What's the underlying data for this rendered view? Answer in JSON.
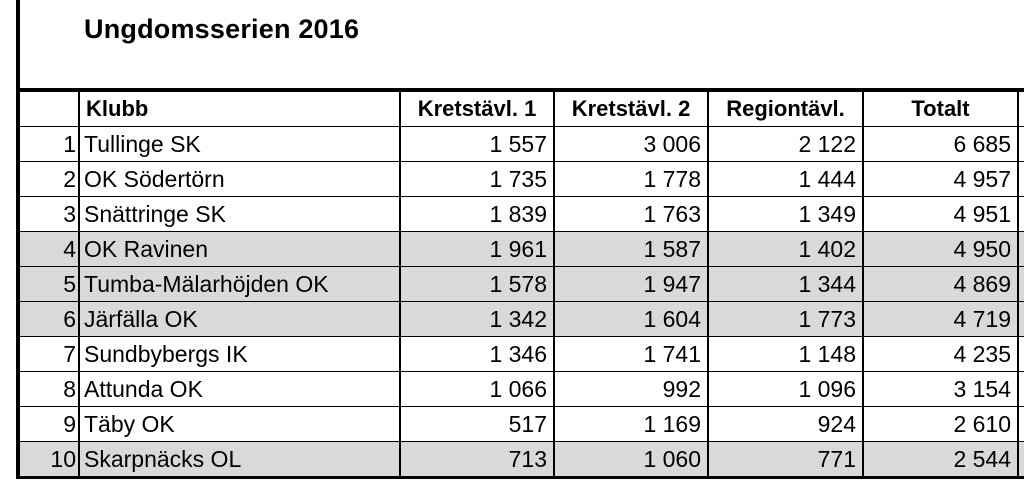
{
  "title": "Ungdomsserien 2016",
  "table": {
    "headers": {
      "rank": "",
      "club": "Klubb",
      "k1": "Kretstävl. 1",
      "k2": "Kretstävl. 2",
      "reg": "Regiontävl.",
      "total": "Totalt"
    },
    "rows": [
      {
        "rank": "1",
        "club": "Tullinge SK",
        "k1": "1 557",
        "k2": "3 006",
        "reg": "2 122",
        "total": "6 685",
        "shaded": false
      },
      {
        "rank": "2",
        "club": "OK Södertörn",
        "k1": "1 735",
        "k2": "1 778",
        "reg": "1 444",
        "total": "4 957",
        "shaded": false
      },
      {
        "rank": "3",
        "club": "Snättringe SK",
        "k1": "1 839",
        "k2": "1 763",
        "reg": "1 349",
        "total": "4 951",
        "shaded": false
      },
      {
        "rank": "4",
        "club": "OK Ravinen",
        "k1": "1 961",
        "k2": "1 587",
        "reg": "1 402",
        "total": "4 950",
        "shaded": true
      },
      {
        "rank": "5",
        "club": "Tumba-Mälarhöjden OK",
        "k1": "1 578",
        "k2": "1 947",
        "reg": "1 344",
        "total": "4 869",
        "shaded": true
      },
      {
        "rank": "6",
        "club": "Järfälla OK",
        "k1": "1 342",
        "k2": "1 604",
        "reg": "1 773",
        "total": "4 719",
        "shaded": true
      },
      {
        "rank": "7",
        "club": "Sundbybergs IK",
        "k1": "1 346",
        "k2": "1 741",
        "reg": "1 148",
        "total": "4 235",
        "shaded": false
      },
      {
        "rank": "8",
        "club": "Attunda OK",
        "k1": "1 066",
        "k2": "992",
        "reg": "1 096",
        "total": "3 154",
        "shaded": false
      },
      {
        "rank": "9",
        "club": "Täby OK",
        "k1": "517",
        "k2": "1 169",
        "reg": "924",
        "total": "2 610",
        "shaded": false
      },
      {
        "rank": "10",
        "club": "Skarpnäcks OL",
        "k1": "713",
        "k2": "1 060",
        "reg": "771",
        "total": "2 544",
        "shaded": true
      }
    ]
  }
}
